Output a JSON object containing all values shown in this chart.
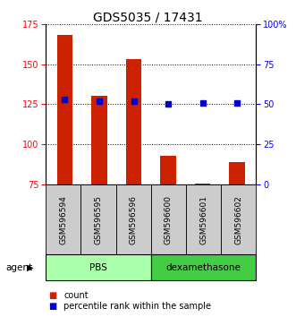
{
  "title": "GDS5035 / 17431",
  "samples": [
    "GSM596594",
    "GSM596595",
    "GSM596596",
    "GSM596600",
    "GSM596601",
    "GSM596602"
  ],
  "groups": [
    "PBS",
    "PBS",
    "PBS",
    "dexamethasone",
    "dexamethasone",
    "dexamethasone"
  ],
  "count_values": [
    168,
    130,
    153,
    93,
    76,
    89
  ],
  "count_baseline": 75,
  "percentile_values": [
    53,
    52,
    52,
    50,
    51,
    51
  ],
  "left_ylim": [
    75,
    175
  ],
  "right_ylim": [
    0,
    100
  ],
  "left_yticks": [
    75,
    100,
    125,
    150,
    175
  ],
  "right_yticks": [
    0,
    25,
    50,
    75,
    100
  ],
  "right_yticklabels": [
    "0",
    "25",
    "50",
    "75",
    "100%"
  ],
  "bar_color": "#cc2200",
  "dot_color": "#0000cc",
  "group_colors": {
    "PBS": "#aaffaa",
    "dexamethasone": "#44cc44"
  },
  "label_area_color": "#cccccc",
  "group_border_color": "#000000"
}
